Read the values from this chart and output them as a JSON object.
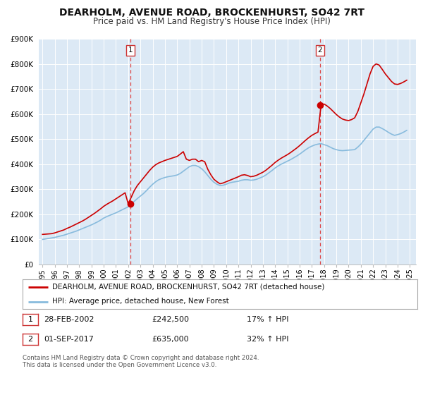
{
  "title": "DEARHOLM, AVENUE ROAD, BROCKENHURST, SO42 7RT",
  "subtitle": "Price paid vs. HM Land Registry's House Price Index (HPI)",
  "title_fontsize": 10,
  "subtitle_fontsize": 8.5,
  "background_color": "#ffffff",
  "plot_bg_color": "#dce9f5",
  "grid_color": "#ffffff",
  "ylim": [
    0,
    900000
  ],
  "yticks": [
    0,
    100000,
    200000,
    300000,
    400000,
    500000,
    600000,
    700000,
    800000,
    900000
  ],
  "ytick_labels": [
    "£0",
    "£100K",
    "£200K",
    "£300K",
    "£400K",
    "£500K",
    "£600K",
    "£700K",
    "£800K",
    "£900K"
  ],
  "xlim_start": 1994.7,
  "xlim_end": 2025.5,
  "xtick_years": [
    1995,
    1996,
    1997,
    1998,
    1999,
    2000,
    2001,
    2002,
    2003,
    2004,
    2005,
    2006,
    2007,
    2008,
    2009,
    2010,
    2011,
    2012,
    2013,
    2014,
    2015,
    2016,
    2017,
    2018,
    2019,
    2020,
    2021,
    2022,
    2023,
    2024,
    2025
  ],
  "sale1_x": 2002.163,
  "sale1_y": 242500,
  "sale2_x": 2017.67,
  "sale2_y": 635000,
  "marker_color": "#cc0000",
  "vline_color": "#dd4444",
  "property_line_color": "#cc0000",
  "hpi_line_color": "#88bbdd",
  "legend_label_property": "DEARHOLM, AVENUE ROAD, BROCKENHURST, SO42 7RT (detached house)",
  "legend_label_hpi": "HPI: Average price, detached house, New Forest",
  "sale1_date": "28-FEB-2002",
  "sale1_price": "£242,500",
  "sale1_hpi": "17% ↑ HPI",
  "sale2_date": "01-SEP-2017",
  "sale2_price": "£635,000",
  "sale2_hpi": "32% ↑ HPI",
  "footer_text": "Contains HM Land Registry data © Crown copyright and database right 2024.\nThis data is licensed under the Open Government Licence v3.0.",
  "hpi_x": [
    1995.0,
    1995.25,
    1995.5,
    1995.75,
    1996.0,
    1996.25,
    1996.5,
    1996.75,
    1997.0,
    1997.25,
    1997.5,
    1997.75,
    1998.0,
    1998.25,
    1998.5,
    1998.75,
    1999.0,
    1999.25,
    1999.5,
    1999.75,
    2000.0,
    2000.25,
    2000.5,
    2000.75,
    2001.0,
    2001.25,
    2001.5,
    2001.75,
    2002.0,
    2002.25,
    2002.5,
    2002.75,
    2003.0,
    2003.25,
    2003.5,
    2003.75,
    2004.0,
    2004.25,
    2004.5,
    2004.75,
    2005.0,
    2005.25,
    2005.5,
    2005.75,
    2006.0,
    2006.25,
    2006.5,
    2006.75,
    2007.0,
    2007.25,
    2007.5,
    2007.75,
    2008.0,
    2008.25,
    2008.5,
    2008.75,
    2009.0,
    2009.25,
    2009.5,
    2009.75,
    2010.0,
    2010.25,
    2010.5,
    2010.75,
    2011.0,
    2011.25,
    2011.5,
    2011.75,
    2012.0,
    2012.25,
    2012.5,
    2012.75,
    2013.0,
    2013.25,
    2013.5,
    2013.75,
    2014.0,
    2014.25,
    2014.5,
    2014.75,
    2015.0,
    2015.25,
    2015.5,
    2015.75,
    2016.0,
    2016.25,
    2016.5,
    2016.75,
    2017.0,
    2017.25,
    2017.5,
    2017.75,
    2018.0,
    2018.25,
    2018.5,
    2018.75,
    2019.0,
    2019.25,
    2019.5,
    2019.75,
    2020.0,
    2020.25,
    2020.5,
    2020.75,
    2021.0,
    2021.25,
    2021.5,
    2021.75,
    2022.0,
    2022.25,
    2022.5,
    2022.75,
    2023.0,
    2023.25,
    2023.5,
    2023.75,
    2024.0,
    2024.25,
    2024.5,
    2024.75
  ],
  "hpi_y": [
    100000,
    102000,
    104000,
    106000,
    108000,
    111000,
    114000,
    117000,
    121000,
    125000,
    129000,
    133000,
    138000,
    143000,
    148000,
    153000,
    158000,
    164000,
    170000,
    177000,
    185000,
    191000,
    196000,
    201000,
    206000,
    212000,
    218000,
    224000,
    230000,
    240000,
    252000,
    263000,
    273000,
    283000,
    295000,
    308000,
    320000,
    330000,
    338000,
    343000,
    347000,
    350000,
    352000,
    354000,
    357000,
    363000,
    372000,
    381000,
    390000,
    395000,
    395000,
    390000,
    382000,
    370000,
    355000,
    340000,
    328000,
    320000,
    315000,
    316000,
    320000,
    325000,
    328000,
    330000,
    332000,
    336000,
    338000,
    338000,
    336000,
    337000,
    340000,
    345000,
    350000,
    357000,
    366000,
    375000,
    385000,
    393000,
    400000,
    406000,
    412000,
    418000,
    425000,
    432000,
    440000,
    449000,
    458000,
    466000,
    472000,
    477000,
    480000,
    482000,
    478000,
    474000,
    468000,
    462000,
    458000,
    455000,
    454000,
    455000,
    456000,
    457000,
    458000,
    468000,
    480000,
    495000,
    510000,
    525000,
    540000,
    548000,
    548000,
    542000,
    535000,
    527000,
    520000,
    515000,
    518000,
    522000,
    528000,
    535000
  ],
  "property_x": [
    1995.0,
    1995.25,
    1995.5,
    1995.75,
    1996.0,
    1996.25,
    1996.5,
    1996.75,
    1997.0,
    1997.25,
    1997.5,
    1997.75,
    1998.0,
    1998.25,
    1998.5,
    1998.75,
    1999.0,
    1999.25,
    1999.5,
    1999.75,
    2000.0,
    2000.25,
    2000.5,
    2000.75,
    2001.0,
    2001.25,
    2001.5,
    2001.75,
    2002.0,
    2002.25,
    2002.5,
    2002.75,
    2003.0,
    2003.25,
    2003.5,
    2003.75,
    2004.0,
    2004.25,
    2004.5,
    2004.75,
    2005.0,
    2005.25,
    2005.5,
    2005.75,
    2006.0,
    2006.25,
    2006.5,
    2006.75,
    2007.0,
    2007.25,
    2007.5,
    2007.75,
    2008.0,
    2008.25,
    2008.5,
    2008.75,
    2009.0,
    2009.25,
    2009.5,
    2009.75,
    2010.0,
    2010.25,
    2010.5,
    2010.75,
    2011.0,
    2011.25,
    2011.5,
    2011.75,
    2012.0,
    2012.25,
    2012.5,
    2012.75,
    2013.0,
    2013.25,
    2013.5,
    2013.75,
    2014.0,
    2014.25,
    2014.5,
    2014.75,
    2015.0,
    2015.25,
    2015.5,
    2015.75,
    2016.0,
    2016.25,
    2016.5,
    2016.75,
    2017.0,
    2017.25,
    2017.5,
    2017.75,
    2018.0,
    2018.25,
    2018.5,
    2018.75,
    2019.0,
    2019.25,
    2019.5,
    2019.75,
    2020.0,
    2020.25,
    2020.5,
    2020.75,
    2021.0,
    2021.25,
    2021.5,
    2021.75,
    2022.0,
    2022.25,
    2022.5,
    2022.75,
    2023.0,
    2023.25,
    2023.5,
    2023.75,
    2024.0,
    2024.25,
    2024.5,
    2024.75
  ],
  "property_y": [
    120000,
    121000,
    122000,
    123000,
    126000,
    130000,
    134000,
    138000,
    144000,
    149000,
    155000,
    161000,
    167000,
    173000,
    180000,
    188000,
    196000,
    204000,
    213000,
    222000,
    232000,
    240000,
    247000,
    254000,
    262000,
    270000,
    278000,
    286000,
    242500,
    268000,
    295000,
    315000,
    330000,
    345000,
    360000,
    375000,
    388000,
    398000,
    405000,
    410000,
    415000,
    419000,
    423000,
    427000,
    431000,
    440000,
    450000,
    420000,
    415000,
    420000,
    420000,
    410000,
    415000,
    410000,
    380000,
    358000,
    340000,
    330000,
    322000,
    325000,
    330000,
    335000,
    340000,
    345000,
    350000,
    356000,
    358000,
    355000,
    350000,
    352000,
    356000,
    362000,
    368000,
    376000,
    386000,
    396000,
    407000,
    416000,
    424000,
    431000,
    438000,
    446000,
    455000,
    464000,
    474000,
    485000,
    496000,
    506000,
    515000,
    522000,
    528000,
    635000,
    640000,
    632000,
    622000,
    610000,
    598000,
    588000,
    580000,
    576000,
    574000,
    578000,
    585000,
    610000,
    645000,
    680000,
    720000,
    760000,
    790000,
    800000,
    795000,
    778000,
    760000,
    745000,
    730000,
    720000,
    718000,
    722000,
    728000,
    735000
  ]
}
